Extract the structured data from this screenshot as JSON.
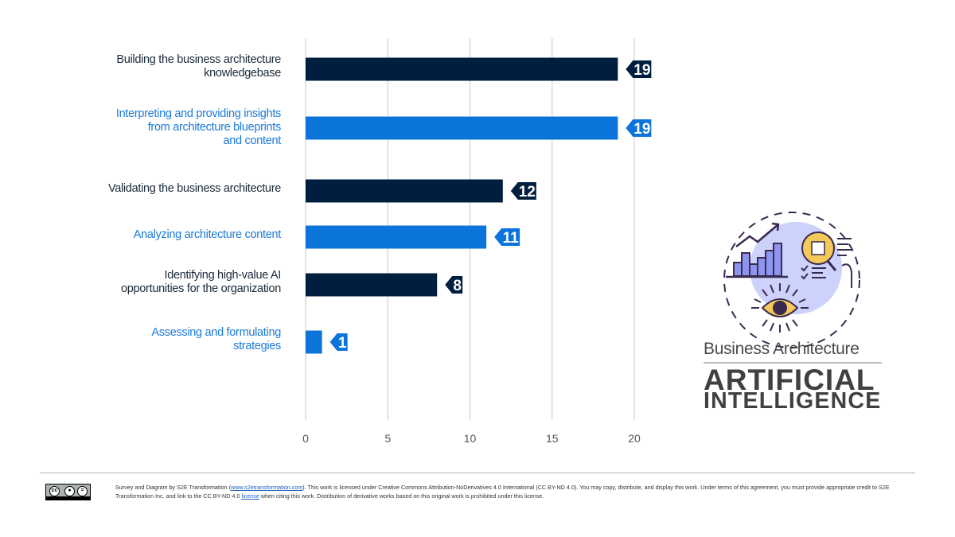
{
  "chart_data": {
    "type": "bar",
    "orientation": "horizontal",
    "title": "",
    "xlabel": "",
    "ylabel": "",
    "xlim": [
      0,
      20
    ],
    "xticks": [
      0,
      5,
      10,
      15,
      20
    ],
    "grid": true,
    "legend": "none",
    "categories": [
      "Building the business architecture\nknowledgebase",
      "Interpreting and providing insights\nfrom architecture blueprints\nand content",
      "Validating the business architecture",
      "Analyzing architecture content",
      "Identifying high-value AI\nopportunities for the organization",
      "Assessing and formulating\nstrategies"
    ],
    "values": [
      19,
      19,
      12,
      11,
      8,
      1
    ],
    "colors": [
      "#001f3f",
      "#0a74da",
      "#001f3f",
      "#0a74da",
      "#001f3f",
      "#0a74da"
    ],
    "label_colors": [
      "#1b2a3a",
      "#1a7ad8",
      "#1b2a3a",
      "#1a7ad8",
      "#1b2a3a",
      "#1a7ad8"
    ]
  },
  "logo": {
    "subtitle": "Business Architecture",
    "title_line1": "ARTIFICIAL",
    "title_line2": "INTELLIGENCE"
  },
  "footer": {
    "cc_badge": {
      "by": "BY",
      "nd": "ND"
    },
    "text_part1": "Survey and Diagram by S2E Transformation (",
    "link1": "www.s2etransformation.com",
    "text_part2": "). This work is licensed under Creative Commons Attribution-NoDerivatives 4.0 International (CC BY-ND 4.0). You may copy, distribute, and display this work. Under terms of this agreement, you must provide appropriate credit to S2E Transformation Inc. and link to the CC BY-ND 4.0 ",
    "link2": "license",
    "text_part3": " when citing this work. Distribution of derivative works based on this original work is prohibited under this license."
  }
}
